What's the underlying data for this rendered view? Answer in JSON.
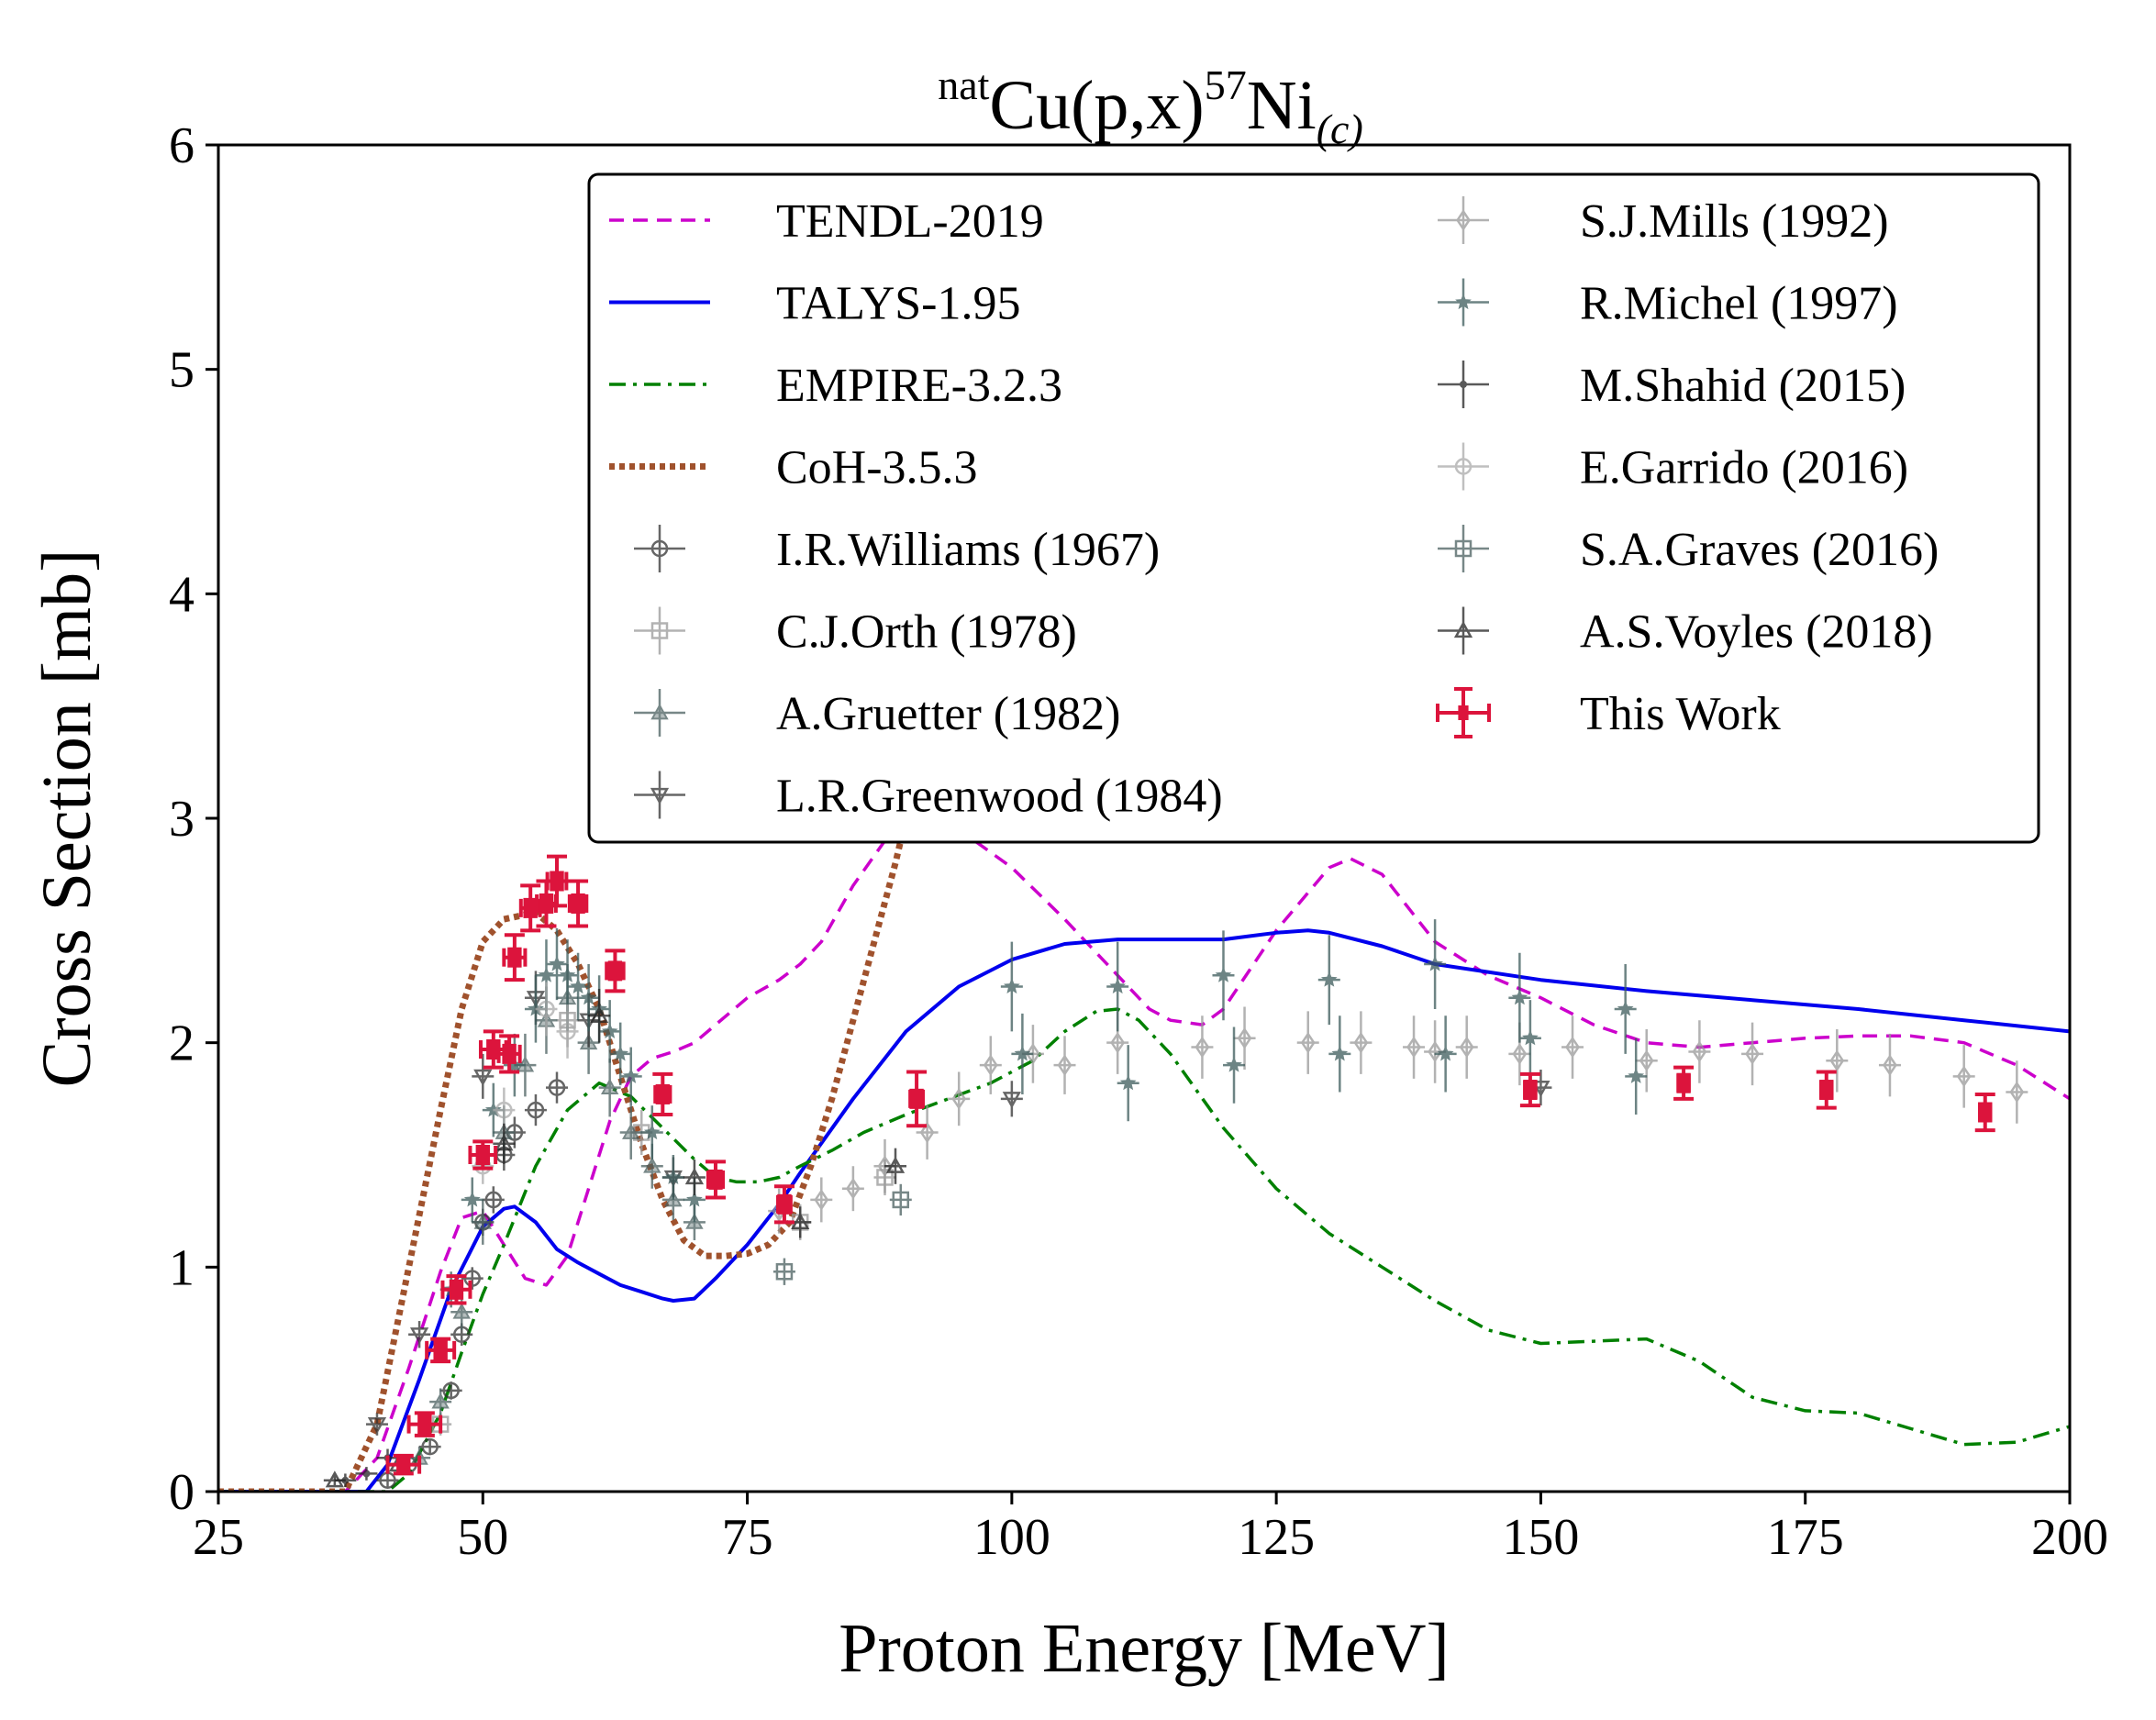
{
  "chart_data": {
    "type": "line",
    "title": {
      "pre_superscript": "nat",
      "main": "Cu(p,x)",
      "mass_superscript": "57",
      "element": "Ni",
      "subscript": "(c)"
    },
    "xlabel": "Proton Energy [MeV]",
    "ylabel": "Cross Section [mb]",
    "xlim": [
      25,
      200
    ],
    "ylim": [
      0,
      6
    ],
    "xticks": [
      25,
      50,
      75,
      100,
      125,
      150,
      175,
      200
    ],
    "yticks": [
      0,
      1,
      2,
      3,
      4,
      5,
      6
    ],
    "legend_position": "top-right",
    "legend_columns": 2,
    "series": [
      {
        "name": "TENDL-2019",
        "kind": "line",
        "color": "#cc00cc",
        "dash": "dashed",
        "x": [
          25,
          37,
          40,
          43,
          46,
          48,
          50,
          52,
          54,
          56,
          58,
          60,
          62,
          64,
          66,
          68,
          70,
          72,
          75,
          78,
          80,
          82,
          85,
          88,
          90,
          92,
          95,
          100,
          105,
          110,
          113,
          115,
          118,
          120,
          125,
          130,
          132,
          135,
          140,
          145,
          150,
          155,
          160,
          165,
          170,
          175,
          180,
          185,
          190,
          195,
          200
        ],
        "y": [
          0,
          0,
          0.15,
          0.55,
          0.98,
          1.22,
          1.25,
          1.1,
          0.95,
          0.92,
          1.05,
          1.35,
          1.65,
          1.85,
          1.93,
          1.96,
          2.0,
          2.08,
          2.2,
          2.28,
          2.35,
          2.45,
          2.7,
          2.9,
          3.0,
          3.0,
          2.95,
          2.78,
          2.55,
          2.3,
          2.15,
          2.1,
          2.08,
          2.15,
          2.5,
          2.78,
          2.82,
          2.75,
          2.45,
          2.3,
          2.2,
          2.08,
          2.0,
          1.98,
          2.0,
          2.02,
          2.03,
          2.03,
          2.0,
          1.9,
          1.75
        ]
      },
      {
        "name": "TALYS-1.95",
        "kind": "line",
        "color": "#0000ee",
        "dash": "solid",
        "x": [
          25,
          39,
          41,
          44,
          47,
          50,
          52,
          53,
          55,
          57,
          59,
          61,
          63,
          65,
          67,
          68,
          70,
          72,
          75,
          78,
          80,
          85,
          90,
          95,
          100,
          105,
          110,
          115,
          118,
          120,
          125,
          128,
          130,
          135,
          140,
          150,
          160,
          170,
          180,
          190,
          200
        ],
        "y": [
          0,
          0,
          0.12,
          0.5,
          0.9,
          1.18,
          1.26,
          1.27,
          1.2,
          1.08,
          1.02,
          0.97,
          0.92,
          0.89,
          0.86,
          0.85,
          0.86,
          0.95,
          1.1,
          1.28,
          1.42,
          1.75,
          2.05,
          2.25,
          2.37,
          2.44,
          2.46,
          2.46,
          2.46,
          2.46,
          2.49,
          2.5,
          2.49,
          2.43,
          2.35,
          2.28,
          2.23,
          2.19,
          2.15,
          2.1,
          2.05
        ]
      },
      {
        "name": "EMPIRE-3.2.3",
        "kind": "line",
        "color": "#008000",
        "dash": "dashdot",
        "x": [
          25,
          41,
          43,
          46,
          48,
          50,
          52,
          55,
          58,
          61,
          64,
          67,
          70,
          72,
          74,
          76,
          78,
          80,
          83,
          86,
          90,
          94,
          98,
          102,
          105,
          108,
          110,
          112,
          115,
          120,
          125,
          130,
          135,
          140,
          145,
          150,
          155,
          160,
          165,
          170,
          175,
          180,
          185,
          190,
          195,
          200
        ],
        "y": [
          0,
          0,
          0.08,
          0.35,
          0.62,
          0.88,
          1.1,
          1.45,
          1.7,
          1.82,
          1.76,
          1.62,
          1.48,
          1.4,
          1.38,
          1.38,
          1.4,
          1.45,
          1.52,
          1.6,
          1.68,
          1.75,
          1.82,
          1.92,
          2.05,
          2.14,
          2.15,
          2.1,
          1.95,
          1.62,
          1.35,
          1.15,
          1.0,
          0.85,
          0.72,
          0.66,
          0.67,
          0.68,
          0.58,
          0.42,
          0.36,
          0.35,
          0.28,
          0.21,
          0.22,
          0.29
        ]
      },
      {
        "name": "CoH-3.5.3",
        "kind": "line",
        "color": "#a0522d",
        "dash": "dotted",
        "x": [
          25,
          37,
          40,
          43,
          46,
          48,
          50,
          52,
          55,
          57,
          59,
          61,
          63,
          65,
          67,
          69,
          71,
          73,
          75,
          77,
          79,
          81,
          83,
          85,
          87,
          89,
          90
        ],
        "y": [
          0,
          0,
          0.3,
          1.0,
          1.7,
          2.15,
          2.45,
          2.55,
          2.58,
          2.5,
          2.35,
          2.15,
          1.85,
          1.55,
          1.3,
          1.12,
          1.05,
          1.05,
          1.06,
          1.1,
          1.2,
          1.45,
          1.75,
          2.1,
          2.45,
          2.8,
          3.0
        ]
      },
      {
        "name": "I.R.Williams (1967)",
        "kind": "points",
        "marker": "circle-open",
        "color": "#333333",
        "x": [
          41,
          43,
          45,
          47,
          48,
          49,
          50,
          51,
          52,
          53,
          55,
          57
        ],
        "y": [
          0.05,
          0.12,
          0.2,
          0.45,
          0.7,
          0.95,
          1.2,
          1.3,
          1.5,
          1.6,
          1.7,
          1.8
        ],
        "yerr": [
          0.03,
          0.03,
          0.03,
          0.04,
          0.05,
          0.05,
          0.06,
          0.06,
          0.07,
          0.07,
          0.07,
          0.07
        ]
      },
      {
        "name": "C.J.Orth (1978)",
        "kind": "points",
        "marker": "square-plus",
        "color": "#999999",
        "x": [
          46,
          58,
          65,
          80,
          88
        ],
        "y": [
          0.3,
          2.1,
          1.6,
          1.2,
          1.4
        ],
        "yerr": [
          0.05,
          0.12,
          0.1,
          0.08,
          0.08
        ]
      },
      {
        "name": "A.Gruetter (1982)",
        "kind": "points",
        "marker": "triangle-up",
        "color": "#4a6060",
        "x": [
          44,
          46,
          48,
          50,
          52,
          54,
          56,
          58,
          60,
          62,
          64,
          66,
          68,
          70
        ],
        "y": [
          0.15,
          0.4,
          0.8,
          1.2,
          1.6,
          1.9,
          2.1,
          2.2,
          2.0,
          1.8,
          1.6,
          1.45,
          1.3,
          1.2
        ],
        "yerr": [
          0.05,
          0.06,
          0.08,
          0.1,
          0.12,
          0.14,
          0.15,
          0.15,
          0.14,
          0.13,
          0.12,
          0.1,
          0.09,
          0.08
        ]
      },
      {
        "name": "L.R.Greenwood (1984)",
        "kind": "points",
        "marker": "triangle-down",
        "color": "#333333",
        "x": [
          40,
          44,
          50,
          55,
          60,
          68,
          100,
          150
        ],
        "y": [
          0.3,
          0.7,
          1.85,
          2.2,
          2.1,
          1.4,
          1.75,
          1.8
        ],
        "yerr": [
          0.05,
          0.06,
          0.1,
          0.12,
          0.12,
          0.09,
          0.08,
          0.08
        ]
      },
      {
        "name": "S.J.Mills (1992)",
        "kind": "points",
        "marker": "diamond-open",
        "color": "#999999",
        "x": [
          78,
          82,
          85,
          88,
          92,
          95,
          98,
          102,
          105,
          110,
          118,
          122,
          128,
          133,
          138,
          140,
          143,
          148,
          153,
          160,
          165,
          170,
          178,
          183,
          190,
          195
        ],
        "y": [
          1.25,
          1.3,
          1.35,
          1.45,
          1.6,
          1.75,
          1.9,
          1.95,
          1.9,
          2.0,
          1.98,
          2.02,
          2.0,
          2.0,
          1.98,
          1.96,
          1.98,
          1.95,
          1.98,
          1.92,
          1.96,
          1.95,
          1.92,
          1.9,
          1.85,
          1.78
        ],
        "yerr": [
          0.1,
          0.1,
          0.1,
          0.12,
          0.12,
          0.12,
          0.13,
          0.13,
          0.13,
          0.14,
          0.14,
          0.14,
          0.14,
          0.14,
          0.14,
          0.14,
          0.14,
          0.14,
          0.14,
          0.14,
          0.14,
          0.14,
          0.14,
          0.14,
          0.14,
          0.14
        ]
      },
      {
        "name": "R.Michel (1997)",
        "kind": "points",
        "marker": "star",
        "color": "#3d5c5c",
        "x": [
          47,
          49,
          51,
          53,
          55,
          56,
          57,
          58,
          59,
          60,
          61,
          62,
          63,
          64,
          66,
          68,
          70,
          100,
          101,
          110,
          111,
          120,
          121,
          130,
          131,
          140,
          141,
          148,
          149,
          158,
          159
        ],
        "y": [
          0.9,
          1.3,
          1.7,
          1.9,
          2.15,
          2.3,
          2.35,
          2.3,
          2.25,
          2.2,
          2.15,
          2.05,
          1.95,
          1.85,
          1.6,
          1.4,
          1.3,
          2.25,
          1.95,
          2.25,
          1.82,
          2.3,
          1.9,
          2.28,
          1.95,
          2.35,
          1.95,
          2.2,
          2.02,
          2.15,
          1.85
        ],
        "yerr": [
          0.08,
          0.1,
          0.12,
          0.14,
          0.15,
          0.16,
          0.16,
          0.16,
          0.15,
          0.15,
          0.15,
          0.14,
          0.14,
          0.13,
          0.12,
          0.1,
          0.1,
          0.2,
          0.18,
          0.2,
          0.17,
          0.2,
          0.17,
          0.2,
          0.17,
          0.2,
          0.17,
          0.2,
          0.17,
          0.2,
          0.17
        ]
      },
      {
        "name": "M.Shahid (2015)",
        "kind": "points",
        "marker": "dot",
        "color": "#222222",
        "x": [
          37,
          39,
          41
        ],
        "y": [
          0.05,
          0.08,
          0.15
        ],
        "yerr": [
          0.03,
          0.03,
          0.04
        ]
      },
      {
        "name": "E.Garrido (2016)",
        "kind": "points",
        "marker": "circle-plus",
        "color": "#aaaaaa",
        "x": [
          50,
          52,
          56,
          58
        ],
        "y": [
          1.45,
          1.7,
          2.15,
          2.05
        ],
        "yerr": [
          0.08,
          0.1,
          0.12,
          0.12
        ]
      },
      {
        "name": "S.A.Graves (2016)",
        "kind": "points",
        "marker": "square-open",
        "color": "#4a6060",
        "x": [
          78.5,
          89.5
        ],
        "y": [
          0.98,
          1.3
        ],
        "yerr": [
          0.06,
          0.07
        ]
      },
      {
        "name": "A.S.Voyles (2018)",
        "kind": "points",
        "marker": "triangle-up-open",
        "color": "#222222",
        "x": [
          36,
          42,
          52,
          61,
          70,
          80,
          89
        ],
        "y": [
          0.05,
          0.12,
          1.55,
          2.12,
          1.4,
          1.2,
          1.45
        ],
        "yerr": [
          0.03,
          0.04,
          0.09,
          0.12,
          0.08,
          0.07,
          0.08
        ]
      },
      {
        "name": "This Work",
        "kind": "points",
        "marker": "rect-filled",
        "color": "#dc143c",
        "x": [
          42.5,
          44.5,
          46,
          47.5,
          50,
          51,
          52.5,
          53,
          54.5,
          56,
          57,
          59,
          62.5,
          67,
          72,
          78.5,
          91,
          149,
          163.5,
          177,
          192
        ],
        "xerr": [
          1.5,
          1.5,
          1.3,
          1.3,
          1.2,
          1.2,
          1.0,
          1.0,
          0.9,
          0.9,
          0.9,
          0.8,
          0.8,
          0.7,
          0.7,
          0.6,
          0.6,
          0.5,
          0.5,
          0.5,
          0.5
        ],
        "y": [
          0.12,
          0.3,
          0.63,
          0.9,
          1.5,
          1.97,
          1.95,
          2.38,
          2.6,
          2.62,
          2.72,
          2.62,
          2.32,
          1.77,
          1.39,
          1.28,
          1.75,
          1.79,
          1.82,
          1.79,
          1.69
        ],
        "yerr": [
          0.04,
          0.05,
          0.05,
          0.06,
          0.06,
          0.08,
          0.08,
          0.1,
          0.1,
          0.1,
          0.11,
          0.1,
          0.09,
          0.09,
          0.08,
          0.08,
          0.12,
          0.07,
          0.07,
          0.08,
          0.08
        ]
      }
    ]
  }
}
